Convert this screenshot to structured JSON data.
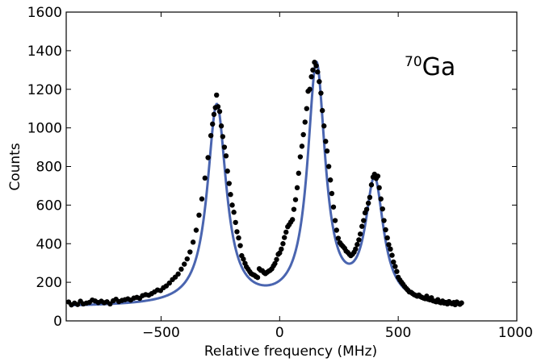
{
  "chart_data": {
    "type": "scatter",
    "xlabel": "Relative frequency (MHz)",
    "ylabel": "Counts",
    "xlim": [
      -900,
      1000
    ],
    "ylim": [
      0,
      1600
    ],
    "xticks": [
      -500,
      0,
      500,
      1000
    ],
    "yticks": [
      0,
      200,
      400,
      600,
      800,
      1000,
      1200,
      1400,
      1600
    ],
    "xtick_labels": [
      "−500",
      "0",
      "500",
      "1000"
    ],
    "ytick_labels": [
      "0",
      "200",
      "400",
      "600",
      "800",
      "1000",
      "1200",
      "1400",
      "1600"
    ],
    "annotation": {
      "superscript": "70",
      "text": "Ga"
    },
    "grid": false,
    "legend": "none",
    "colors": {
      "data": "#000000",
      "fit": "#4a65b0"
    },
    "series": [
      {
        "kind": "points",
        "points": [
          [
            -890,
            98
          ],
          [
            -878,
            83
          ],
          [
            -865,
            92
          ],
          [
            -852,
            85
          ],
          [
            -840,
            102
          ],
          [
            -828,
            88
          ],
          [
            -815,
            92
          ],
          [
            -802,
            96
          ],
          [
            -790,
            108
          ],
          [
            -778,
            103
          ],
          [
            -765,
            95
          ],
          [
            -752,
            102
          ],
          [
            -740,
            94
          ],
          [
            -728,
            99
          ],
          [
            -715,
            88
          ],
          [
            -702,
            104
          ],
          [
            -690,
            112
          ],
          [
            -678,
            100
          ],
          [
            -665,
            106
          ],
          [
            -652,
            110
          ],
          [
            -640,
            114
          ],
          [
            -628,
            108
          ],
          [
            -615,
            118
          ],
          [
            -602,
            122
          ],
          [
            -590,
            117
          ],
          [
            -578,
            131
          ],
          [
            -565,
            136
          ],
          [
            -552,
            133
          ],
          [
            -540,
            141
          ],
          [
            -528,
            150
          ],
          [
            -515,
            160
          ],
          [
            -502,
            157
          ],
          [
            -490,
            172
          ],
          [
            -478,
            181
          ],
          [
            -465,
            196
          ],
          [
            -452,
            214
          ],
          [
            -440,
            227
          ],
          [
            -428,
            243
          ],
          [
            -415,
            268
          ],
          [
            -402,
            294
          ],
          [
            -390,
            321
          ],
          [
            -378,
            357
          ],
          [
            -365,
            408
          ],
          [
            -352,
            470
          ],
          [
            -340,
            548
          ],
          [
            -328,
            632
          ],
          [
            -315,
            740
          ],
          [
            -302,
            846
          ],
          [
            -290,
            960
          ],
          [
            -283,
            1020
          ],
          [
            -277,
            1070
          ],
          [
            -271,
            1105
          ],
          [
            -266,
            1170
          ],
          [
            -260,
            1110
          ],
          [
            -253,
            1085
          ],
          [
            -246,
            1010
          ],
          [
            -240,
            955
          ],
          [
            -233,
            900
          ],
          [
            -226,
            855
          ],
          [
            -220,
            776
          ],
          [
            -213,
            712
          ],
          [
            -207,
            655
          ],
          [
            -200,
            600
          ],
          [
            -193,
            563
          ],
          [
            -186,
            510
          ],
          [
            -180,
            462
          ],
          [
            -173,
            430
          ],
          [
            -166,
            390
          ],
          [
            -160,
            338
          ],
          [
            -153,
            320
          ],
          [
            -146,
            298
          ],
          [
            -140,
            280
          ],
          [
            -133,
            268
          ],
          [
            -126,
            255
          ],
          [
            -120,
            245
          ],
          [
            -113,
            240
          ],
          [
            -106,
            236
          ],
          [
            -100,
            230
          ],
          [
            -93,
            225
          ],
          [
            -86,
            270
          ],
          [
            -80,
            262
          ],
          [
            -73,
            260
          ],
          [
            -66,
            250
          ],
          [
            -60,
            245
          ],
          [
            -53,
            252
          ],
          [
            -46,
            258
          ],
          [
            -40,
            262
          ],
          [
            -33,
            270
          ],
          [
            -26,
            285
          ],
          [
            -20,
            297
          ],
          [
            -13,
            318
          ],
          [
            -6,
            345
          ],
          [
            0,
            352
          ],
          [
            7,
            372
          ],
          [
            14,
            400
          ],
          [
            20,
            432
          ],
          [
            27,
            460
          ],
          [
            34,
            488
          ],
          [
            40,
            498
          ],
          [
            47,
            512
          ],
          [
            54,
            525
          ],
          [
            60,
            578
          ],
          [
            67,
            628
          ],
          [
            74,
            690
          ],
          [
            80,
            765
          ],
          [
            87,
            850
          ],
          [
            94,
            905
          ],
          [
            100,
            965
          ],
          [
            107,
            1030
          ],
          [
            114,
            1100
          ],
          [
            120,
            1190
          ],
          [
            127,
            1200
          ],
          [
            134,
            1265
          ],
          [
            140,
            1300
          ],
          [
            147,
            1340
          ],
          [
            154,
            1322
          ],
          [
            160,
            1290
          ],
          [
            167,
            1240
          ],
          [
            174,
            1180
          ],
          [
            180,
            1090
          ],
          [
            187,
            1010
          ],
          [
            194,
            930
          ],
          [
            200,
            880
          ],
          [
            207,
            800
          ],
          [
            214,
            730
          ],
          [
            220,
            660
          ],
          [
            227,
            590
          ],
          [
            234,
            520
          ],
          [
            240,
            470
          ],
          [
            247,
            428
          ],
          [
            254,
            405
          ],
          [
            260,
            395
          ],
          [
            267,
            386
          ],
          [
            274,
            376
          ],
          [
            280,
            362
          ],
          [
            287,
            355
          ],
          [
            294,
            345
          ],
          [
            300,
            338
          ],
          [
            307,
            345
          ],
          [
            314,
            356
          ],
          [
            320,
            372
          ],
          [
            327,
            396
          ],
          [
            334,
            420
          ],
          [
            340,
            450
          ],
          [
            347,
            490
          ],
          [
            354,
            520
          ],
          [
            360,
            560
          ],
          [
            367,
            578
          ],
          [
            374,
            610
          ],
          [
            380,
            640
          ],
          [
            387,
            705
          ],
          [
            394,
            745
          ],
          [
            400,
            760
          ],
          [
            407,
            738
          ],
          [
            414,
            750
          ],
          [
            420,
            690
          ],
          [
            427,
            632
          ],
          [
            434,
            580
          ],
          [
            440,
            520
          ],
          [
            447,
            472
          ],
          [
            454,
            430
          ],
          [
            460,
            395
          ],
          [
            467,
            372
          ],
          [
            474,
            340
          ],
          [
            480,
            305
          ],
          [
            487,
            282
          ],
          [
            494,
            256
          ],
          [
            500,
            226
          ],
          [
            507,
            212
          ],
          [
            514,
            200
          ],
          [
            520,
            190
          ],
          [
            527,
            178
          ],
          [
            534,
            168
          ],
          [
            540,
            160
          ],
          [
            547,
            150
          ],
          [
            554,
            148
          ],
          [
            560,
            142
          ],
          [
            567,
            136
          ],
          [
            574,
            132
          ],
          [
            580,
            128
          ],
          [
            587,
            134
          ],
          [
            594,
            126
          ],
          [
            600,
            122
          ],
          [
            607,
            118
          ],
          [
            614,
            115
          ],
          [
            620,
            128
          ],
          [
            627,
            112
          ],
          [
            634,
            109
          ],
          [
            640,
            120
          ],
          [
            647,
            104
          ],
          [
            654,
            102
          ],
          [
            660,
            99
          ],
          [
            667,
            110
          ],
          [
            674,
            97
          ],
          [
            680,
            94
          ],
          [
            687,
            103
          ],
          [
            694,
            92
          ],
          [
            700,
            96
          ],
          [
            707,
            88
          ],
          [
            714,
            100
          ],
          [
            720,
            92
          ],
          [
            727,
            89
          ],
          [
            734,
            95
          ],
          [
            740,
            84
          ],
          [
            747,
            98
          ],
          [
            754,
            90
          ],
          [
            760,
            86
          ],
          [
            767,
            93
          ]
        ]
      },
      {
        "kind": "fit-line",
        "baseline": 72,
        "peaks": [
          {
            "center": -265,
            "height": 1035,
            "hwhm": 48
          },
          {
            "center": 155,
            "height": 1235,
            "hwhm": 45
          },
          {
            "center": 400,
            "height": 630,
            "hwhm": 46
          }
        ],
        "range": [
          -880,
          770
        ]
      }
    ]
  }
}
